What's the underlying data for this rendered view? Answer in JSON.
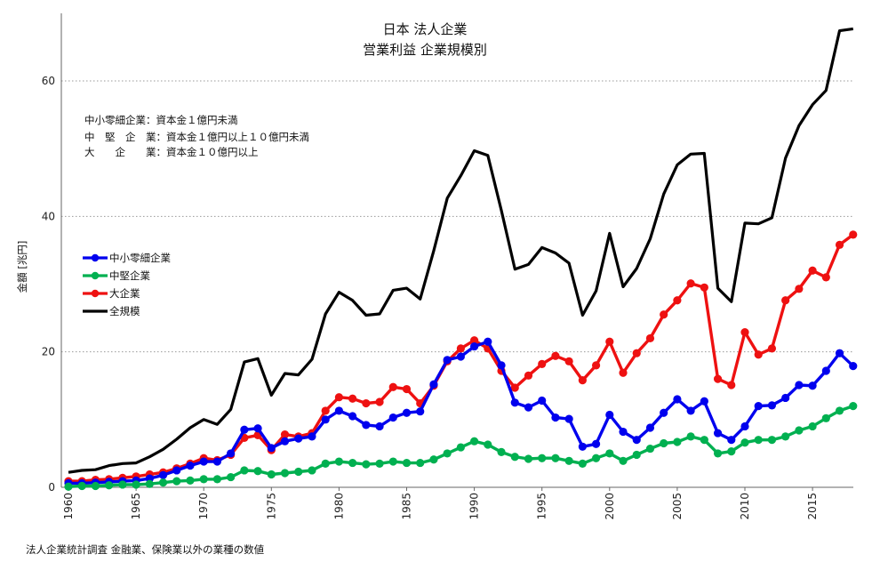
{
  "chart_data": {
    "type": "line",
    "title": "日本 法人企業",
    "subtitle": "営業利益 企業規模別",
    "ylabel": "金額 [兆円]",
    "xlabel": "",
    "xlim": [
      1960,
      2018
    ],
    "ylim": [
      0,
      70
    ],
    "x_ticks": [
      1960,
      1965,
      1970,
      1975,
      1980,
      1985,
      1990,
      1995,
      2000,
      2005,
      2010,
      2015
    ],
    "y_ticks": [
      0,
      20,
      40,
      60
    ],
    "grid": "horizontal-dotted",
    "legend_position": "left-middle",
    "notes": [
      "中小零細企業：資本金１億円未満",
      "中　堅　企　業：資本金１億円以上１０億円未満",
      "大　　企　　業：資本金１０億円以上"
    ],
    "source": "法人企業統計調査 金融業、保険業以外の業種の数値",
    "x": [
      1960,
      1961,
      1962,
      1963,
      1964,
      1965,
      1966,
      1967,
      1968,
      1969,
      1970,
      1971,
      1972,
      1973,
      1974,
      1975,
      1976,
      1977,
      1978,
      1979,
      1980,
      1981,
      1982,
      1983,
      1984,
      1985,
      1986,
      1987,
      1988,
      1989,
      1990,
      1991,
      1992,
      1993,
      1994,
      1995,
      1996,
      1997,
      1998,
      1999,
      2000,
      2001,
      2002,
      2003,
      2004,
      2005,
      2006,
      2007,
      2008,
      2009,
      2010,
      2011,
      2012,
      2013,
      2014,
      2015,
      2016,
      2017,
      2018
    ],
    "series": [
      {
        "name": "中小零細企業",
        "color": "#0000ee",
        "values": [
          0.6,
          0.6,
          0.7,
          0.8,
          0.9,
          1.0,
          1.3,
          1.8,
          2.5,
          3.2,
          3.8,
          3.8,
          5.0,
          8.5,
          8.7,
          5.8,
          6.8,
          7.2,
          7.5,
          10.0,
          11.3,
          10.5,
          9.2,
          9.0,
          10.3,
          11.0,
          11.2,
          15.2,
          18.8,
          19.3,
          20.8,
          21.5,
          18.0,
          12.5,
          11.8,
          12.8,
          10.3,
          10.1,
          6.0,
          6.4,
          10.7,
          8.2,
          7.0,
          8.8,
          11.0,
          13.0,
          11.3,
          12.7,
          8.0,
          7.0,
          9.0,
          12.0,
          12.1,
          13.2,
          15.1,
          15.0,
          17.2,
          19.8,
          17.9
        ]
      },
      {
        "name": "中堅企業",
        "color": "#00b050",
        "values": [
          0.1,
          0.2,
          0.2,
          0.3,
          0.4,
          0.4,
          0.5,
          0.7,
          0.9,
          1.0,
          1.2,
          1.2,
          1.5,
          2.5,
          2.4,
          1.9,
          2.1,
          2.3,
          2.5,
          3.5,
          3.8,
          3.6,
          3.4,
          3.5,
          3.8,
          3.6,
          3.6,
          4.1,
          5.0,
          5.9,
          6.8,
          6.3,
          5.2,
          4.5,
          4.2,
          4.3,
          4.3,
          3.9,
          3.5,
          4.3,
          5.0,
          3.9,
          4.8,
          5.7,
          6.5,
          6.7,
          7.5,
          7.0,
          5.0,
          5.3,
          6.6,
          7.0,
          7.0,
          7.5,
          8.4,
          9.0,
          10.2,
          11.3,
          12.0
        ]
      },
      {
        "name": "大企業",
        "color": "#ee1111",
        "values": [
          0.9,
          0.9,
          1.1,
          1.2,
          1.4,
          1.6,
          1.9,
          2.2,
          2.8,
          3.5,
          4.3,
          4.0,
          4.8,
          7.3,
          7.7,
          5.5,
          7.8,
          7.5,
          8.0,
          11.3,
          13.3,
          13.1,
          12.4,
          12.6,
          14.8,
          14.5,
          12.4,
          15.0,
          18.6,
          20.5,
          21.7,
          20.5,
          17.2,
          14.7,
          16.5,
          18.2,
          19.4,
          18.6,
          15.8,
          18.0,
          21.5,
          16.9,
          19.8,
          22.0,
          25.5,
          27.6,
          30.1,
          29.5,
          16.0,
          15.1,
          22.9,
          19.6,
          20.5,
          27.6,
          29.3,
          32.0,
          31.0,
          35.8,
          37.3
        ]
      },
      {
        "name": "全規模",
        "color": "#000000",
        "values": [
          2.2,
          2.5,
          2.6,
          3.2,
          3.5,
          3.6,
          4.5,
          5.6,
          7.1,
          8.8,
          10.0,
          9.3,
          11.5,
          18.5,
          19.0,
          13.6,
          16.8,
          16.6,
          18.9,
          25.6,
          28.8,
          27.6,
          25.4,
          25.6,
          29.1,
          29.4,
          27.8,
          34.9,
          42.7,
          46.0,
          49.7,
          49.0,
          40.9,
          32.2,
          32.9,
          35.4,
          34.6,
          33.1,
          25.4,
          29.0,
          37.5,
          29.6,
          32.3,
          36.7,
          43.3,
          47.6,
          49.2,
          49.3,
          29.4,
          27.4,
          39.0,
          38.9,
          39.8,
          48.6,
          53.4,
          56.5,
          58.6,
          67.4,
          67.7
        ]
      }
    ]
  }
}
